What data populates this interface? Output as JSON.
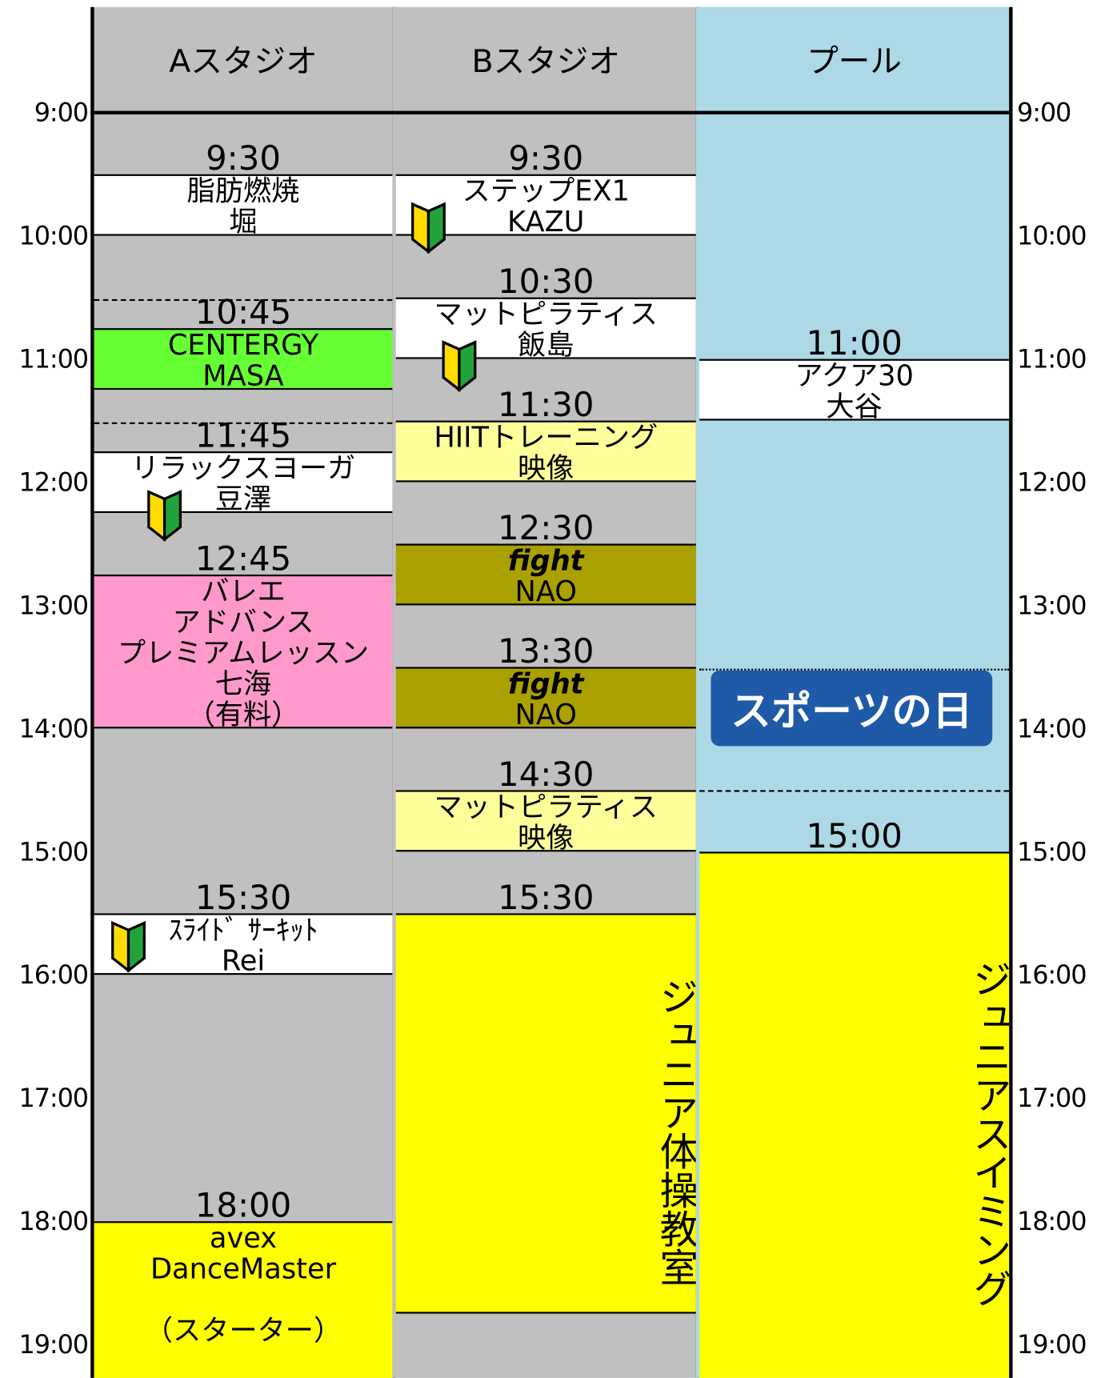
{
  "hours": [
    "9:00",
    "10:00",
    "11:00",
    "12:00",
    "13:00",
    "14:00",
    "15:00",
    "16:00",
    "17:00",
    "18:00",
    "19:00"
  ],
  "columns": [
    {
      "name": "Aスタジオ",
      "events": [
        {
          "time": "9:30",
          "lines": [
            "脂肪燃焼",
            "堀"
          ]
        },
        {
          "time": "10:45",
          "lines": [
            "CENTERGY",
            "MASA"
          ]
        },
        {
          "time": "11:45",
          "lines": [
            "リラックスヨーガ",
            "豆澤"
          ]
        },
        {
          "time": "12:45",
          "lines": [
            "バレエ",
            "アドバンス",
            "プレミアムレッスン",
            "七海",
            "（有料）"
          ]
        },
        {
          "time": "15:30",
          "lines": [
            "ｽﾗｲﾄﾞ ｻｰｷｯﾄ",
            "Rei"
          ]
        },
        {
          "time": "18:00",
          "lines": [
            "avex",
            "DanceMaster",
            "",
            "（スターター）"
          ]
        }
      ]
    },
    {
      "name": "Bスタジオ",
      "events": [
        {
          "time": "9:30",
          "lines": [
            "ステップEX1",
            "KAZU"
          ]
        },
        {
          "time": "10:30",
          "lines": [
            "マットピラティス",
            "飯島"
          ]
        },
        {
          "time": "11:30",
          "lines": [
            "HIITトレーニング",
            "映像"
          ]
        },
        {
          "time": "12:30",
          "lines": [
            "fight",
            "NAO"
          ]
        },
        {
          "time": "13:30",
          "lines": [
            "fight",
            "NAO"
          ]
        },
        {
          "time": "14:30",
          "lines": [
            "マットピラティス",
            "映像"
          ]
        },
        {
          "time": "15:30",
          "lines": [
            "ジュニア体操教室"
          ]
        }
      ]
    },
    {
      "name": "プール",
      "sign": "スポーツの日",
      "events": [
        {
          "time": "11:00",
          "lines": [
            "アクア30",
            "大谷"
          ]
        },
        {
          "time": "15:00",
          "lines": [
            "ジュニアスイミング"
          ]
        }
      ]
    }
  ]
}
